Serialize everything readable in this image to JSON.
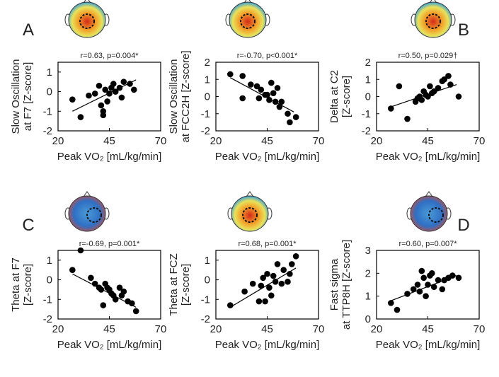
{
  "chart_data": [
    {
      "type": "scatter",
      "panel": "A",
      "annotation": "r=0.63, p=0.004*",
      "xlabel": "Peak VO₂ [mL/kg/min]",
      "ylabel": [
        "Slow Oscillation",
        "at F7 [Z-score]"
      ],
      "x": [
        27,
        31,
        35,
        38,
        40,
        41,
        42,
        42,
        43,
        44,
        45,
        46,
        47,
        48,
        50,
        51,
        52,
        55,
        57
      ],
      "y": [
        -0.4,
        -1.3,
        -0.2,
        -0.1,
        0.3,
        -0.7,
        -1.0,
        -1.2,
        0.1,
        -0.5,
        -0.1,
        0.2,
        0.4,
        0.0,
        0.2,
        -0.3,
        0.5,
        0.4,
        0.1
      ],
      "fit": {
        "x": [
          27,
          58
        ],
        "y": [
          -1.0,
          0.6
        ]
      },
      "color": "#000000",
      "xlim": [
        20,
        70
      ],
      "xticks": [
        20,
        45,
        70
      ],
      "ylim": [
        -2,
        1.5
      ],
      "yticks": [
        -2,
        -1,
        0,
        1
      ]
    },
    {
      "type": "scatter",
      "annotation": "r=-0.70, p<0.001*",
      "xlabel": "Peak VO₂ [mL/kg/min]",
      "ylabel": [
        "Slow Oscillation",
        "at FCC2H [Z-score]"
      ],
      "x": [
        27,
        33,
        33,
        37,
        40,
        41,
        42,
        44,
        45,
        46,
        47,
        48,
        49,
        50,
        51,
        52,
        55,
        56,
        59
      ],
      "y": [
        1.3,
        1.2,
        -0.1,
        0.7,
        0.6,
        -0.1,
        0.4,
        0.1,
        0.1,
        -0.2,
        0.8,
        0.2,
        -0.3,
        0.5,
        -0.6,
        -0.3,
        -1.0,
        -1.5,
        -1.2
      ],
      "fit": {
        "x": [
          27,
          58
        ],
        "y": [
          1.1,
          -0.9
        ]
      },
      "color": "#000000",
      "xlim": [
        20,
        70
      ],
      "xticks": [
        20,
        45,
        70
      ],
      "ylim": [
        -2,
        2
      ],
      "yticks": [
        -2,
        -1,
        0,
        1,
        2
      ]
    },
    {
      "type": "scatter",
      "panel": "B",
      "annotation": "r=0.50, p=0.029†",
      "xlabel": "Peak VO₂ [mL/kg/min]",
      "ylabel": [
        "Delta at C2",
        "[Z-score]"
      ],
      "x": [
        27,
        31,
        35,
        39,
        40,
        41,
        42,
        43,
        44,
        45,
        46,
        47,
        48,
        50,
        52,
        53,
        55,
        56,
        60
      ],
      "y": [
        -0.7,
        0.6,
        -1.3,
        -0.3,
        -0.1,
        0.0,
        -0.2,
        0.3,
        0.1,
        0.0,
        0.6,
        0.2,
        0.3,
        0.5,
        0.9,
        1.0,
        1.2,
        0.7,
        0.0
      ],
      "fit": {
        "x": [
          27,
          59
        ],
        "y": [
          -0.6,
          0.7
        ]
      },
      "color": "#000000",
      "xlim": [
        20,
        70
      ],
      "xticks": [
        20,
        45,
        70
      ],
      "ylim": [
        -2,
        2
      ],
      "yticks": [
        -2,
        -1,
        0,
        1,
        2
      ]
    },
    {
      "type": "scatter",
      "panel": "C",
      "annotation": "r=-0.69, p=0.001*",
      "xlabel": "Peak VO₂ [mL/kg/min]",
      "ylabel": [
        "Theta at F7",
        "[Z-score]"
      ],
      "x": [
        27,
        31,
        36,
        38,
        40,
        41,
        42,
        43,
        44,
        45,
        46,
        47,
        48,
        50,
        51,
        52,
        54,
        56,
        58
      ],
      "y": [
        0.5,
        1.5,
        0.1,
        -0.2,
        -0.4,
        -0.5,
        -1.3,
        -0.2,
        -0.4,
        -0.5,
        -0.7,
        -0.8,
        -1.0,
        -0.4,
        -0.8,
        -0.6,
        -1.1,
        -1.2,
        -1.6
      ],
      "fit": {
        "x": [
          27,
          58
        ],
        "y": [
          0.3,
          -1.4
        ]
      },
      "color": "#000000",
      "xlim": [
        20,
        70
      ],
      "xticks": [
        20,
        45,
        70
      ],
      "ylim": [
        -2,
        1.5
      ],
      "yticks": [
        -2,
        -1,
        0,
        1
      ]
    },
    {
      "type": "scatter",
      "annotation": "r=0.68, p=0.001*",
      "xlabel": "Peak VO₂ [mL/kg/min]",
      "ylabel": [
        "Theta at FCZ",
        "[Z-score]"
      ],
      "x": [
        27,
        34,
        38,
        41,
        42,
        43,
        44,
        45,
        46,
        47,
        48,
        49,
        50,
        52,
        53,
        55,
        56,
        57,
        59
      ],
      "y": [
        -1.3,
        -0.6,
        -0.2,
        -1.1,
        -0.3,
        0.1,
        -1.1,
        0.3,
        -0.4,
        -0.8,
        0.2,
        -0.1,
        0.8,
        -0.2,
        0.5,
        -0.1,
        0.3,
        0.8,
        1.2
      ],
      "fit": {
        "x": [
          27,
          59
        ],
        "y": [
          -1.4,
          0.6
        ]
      },
      "color": "#000000",
      "xlim": [
        20,
        70
      ],
      "xticks": [
        20,
        45,
        70
      ],
      "ylim": [
        -2,
        1.5
      ],
      "yticks": [
        -2,
        -1,
        0,
        1
      ]
    },
    {
      "type": "scatter",
      "panel": "D",
      "annotation": "r=0.60, p=0.007*",
      "xlabel": "Peak VO₂ [mL/kg/min]",
      "ylabel": [
        "Fast sigma",
        "at TTP8H [Z-score]"
      ],
      "x": [
        27,
        30,
        35,
        38,
        40,
        41,
        42,
        43,
        44,
        45,
        46,
        47,
        48,
        50,
        52,
        53,
        55,
        57,
        60
      ],
      "y": [
        0.7,
        0.4,
        1.1,
        1.3,
        1.5,
        1.2,
        2.1,
        1.8,
        1.0,
        1.5,
        1.9,
        2.0,
        1.4,
        1.7,
        1.3,
        1.7,
        1.8,
        1.9,
        1.8
      ],
      "fit": {
        "x": [
          27,
          59
        ],
        "y": [
          0.8,
          1.9
        ]
      },
      "color": "#000000",
      "xlim": [
        20,
        70
      ],
      "xticks": [
        20,
        45,
        70
      ],
      "ylim": [
        0,
        3
      ],
      "yticks": [
        0,
        1,
        2,
        3
      ]
    }
  ]
}
